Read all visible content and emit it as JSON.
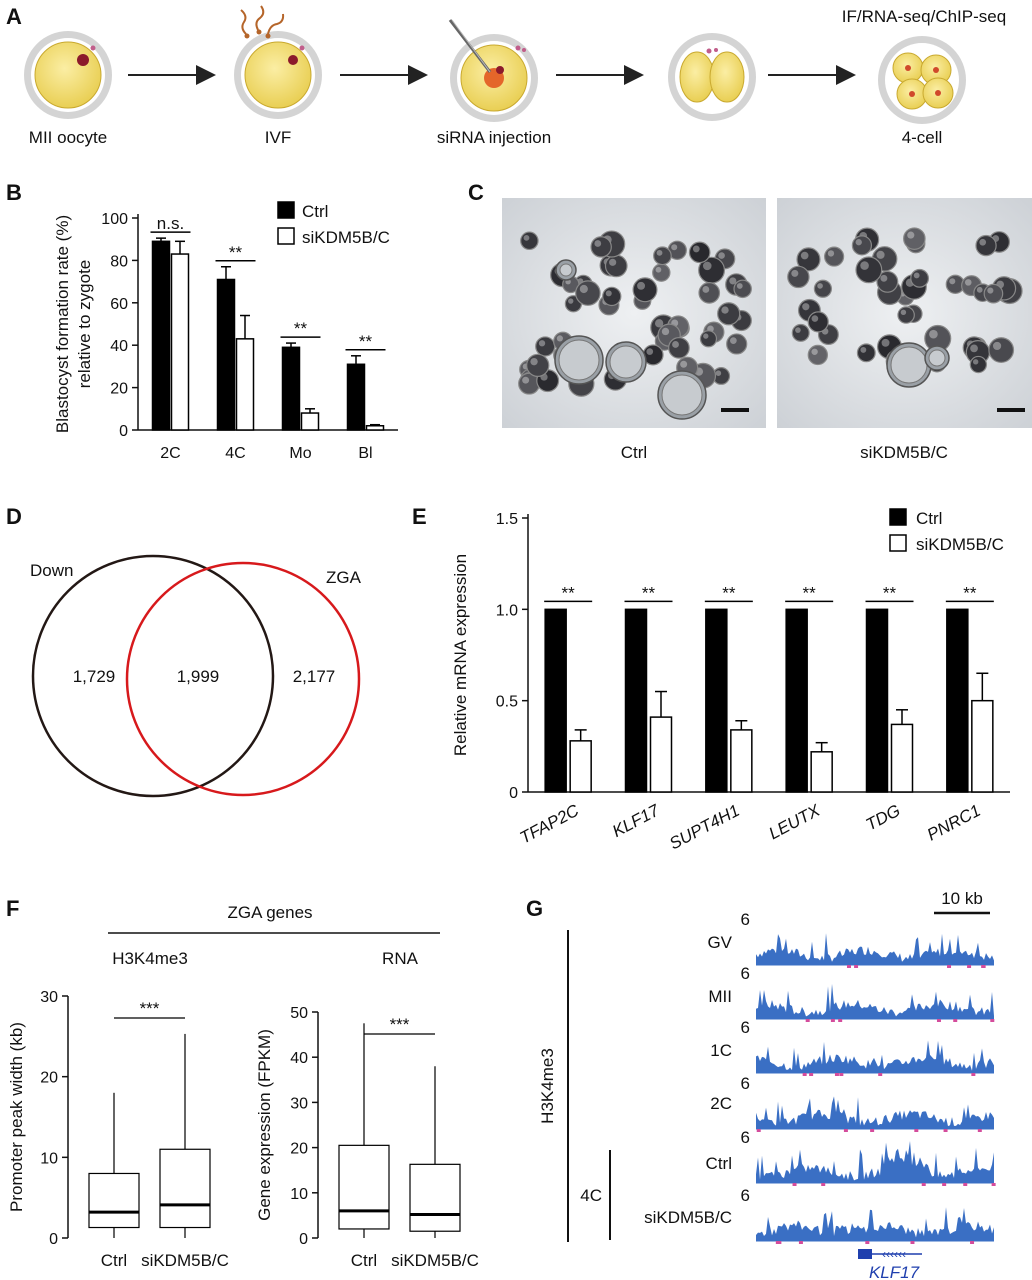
{
  "panels": {
    "A": {
      "letter": "A",
      "stages": [
        "MII oocyte",
        "IVF",
        "siRNA injection",
        "",
        "4-cell"
      ],
      "top_label": "IF/RNA-seq/ChIP-seq"
    },
    "B": {
      "letter": "B",
      "chart_data": {
        "type": "bar",
        "categories": [
          "2C",
          "4C",
          "Mo",
          "Bl"
        ],
        "series": [
          {
            "name": "Ctrl",
            "values": [
              89,
              71,
              39,
              31
            ],
            "errors": [
              1.5,
              6,
              2,
              4
            ],
            "color": "#000000"
          },
          {
            "name": "siKDM5B/C",
            "values": [
              83,
              43,
              8,
              2
            ],
            "errors": [
              6,
              11,
              2,
              0.5
            ],
            "color": "#ffffff"
          }
        ],
        "ylabel_line1": "Blastocyst formation rate (%)",
        "ylabel_line2": "relative to zygote",
        "ylim": [
          0,
          100
        ],
        "yticks": [
          0,
          20,
          40,
          60,
          80,
          100
        ],
        "significance": [
          "n.s.",
          "**",
          "**",
          "**"
        ],
        "legend_position": "top-right"
      }
    },
    "C": {
      "letter": "C",
      "captions": [
        "Ctrl",
        "siKDM5B/C"
      ]
    },
    "D": {
      "letter": "D",
      "sets": [
        {
          "name": "Down",
          "color": "#231815"
        },
        {
          "name": "ZGA",
          "color": "#d7191c"
        }
      ],
      "counts": {
        "left_only": "1,729",
        "overlap": "1,999",
        "right_only": "2,177"
      }
    },
    "E": {
      "letter": "E",
      "chart_data": {
        "type": "bar",
        "categories": [
          "TFAP2C",
          "KLF17",
          "SUPT4H1",
          "LEUTX",
          "TDG",
          "PNRC1"
        ],
        "series": [
          {
            "name": "Ctrl",
            "values": [
              1.0,
              1.0,
              1.0,
              1.0,
              1.0,
              1.0
            ],
            "errors": [
              0,
              0,
              0,
              0,
              0,
              0
            ],
            "color": "#000000"
          },
          {
            "name": "siKDM5B/C",
            "values": [
              0.28,
              0.41,
              0.34,
              0.22,
              0.37,
              0.5
            ],
            "errors": [
              0.06,
              0.14,
              0.05,
              0.05,
              0.08,
              0.15
            ],
            "color": "#ffffff"
          }
        ],
        "ylabel": "Relative mRNA expression",
        "ylim": [
          0,
          1.5
        ],
        "yticks": [
          "0",
          "0.5",
          "1.0",
          "1.5"
        ],
        "yticks_values": [
          0,
          0.5,
          1.0,
          1.5
        ],
        "significance": [
          "**",
          "**",
          "**",
          "**",
          "**",
          "**"
        ],
        "legend_position": "top-right"
      }
    },
    "F": {
      "letter": "F",
      "header": "ZGA genes",
      "charts": [
        {
          "type": "box",
          "subtitle": "H3K4me3",
          "ylabel": "Promoter peak width (kb)",
          "ylim": [
            0,
            30
          ],
          "yticks": [
            0,
            10,
            20,
            30
          ],
          "categories": [
            "Ctrl",
            "siKDM5B/C"
          ],
          "boxes": [
            {
              "min": 0,
              "q1": 1.3,
              "median": 3.2,
              "q3": 8.0,
              "max": 18.0
            },
            {
              "min": 0,
              "q1": 1.3,
              "median": 4.1,
              "q3": 11.0,
              "max": 25.3
            }
          ],
          "significance": "***"
        },
        {
          "type": "box",
          "subtitle": "RNA",
          "ylabel": "Gene expression (FPKM)",
          "ylim": [
            0,
            50
          ],
          "yticks": [
            0,
            10,
            20,
            30,
            40,
            50
          ],
          "categories": [
            "Ctrl",
            "siKDM5B/C"
          ],
          "boxes": [
            {
              "min": 0,
              "q1": 2.0,
              "median": 6.0,
              "q3": 20.5,
              "max": 47.5
            },
            {
              "min": 0,
              "q1": 1.5,
              "median": 5.2,
              "q3": 16.3,
              "max": 38.0
            }
          ],
          "significance": "***"
        }
      ]
    },
    "G": {
      "letter": "G",
      "group_label": "H3K4me3",
      "subgroup_label": "4C",
      "scale_bar": "10 kb",
      "track_max": "6",
      "tracks": [
        "GV",
        "MII",
        "1C",
        "2C",
        "Ctrl",
        "siKDM5B/C"
      ],
      "gene": "KLF17",
      "track_color": "#3a6fc4",
      "gene_color": "#1f3fae"
    }
  }
}
